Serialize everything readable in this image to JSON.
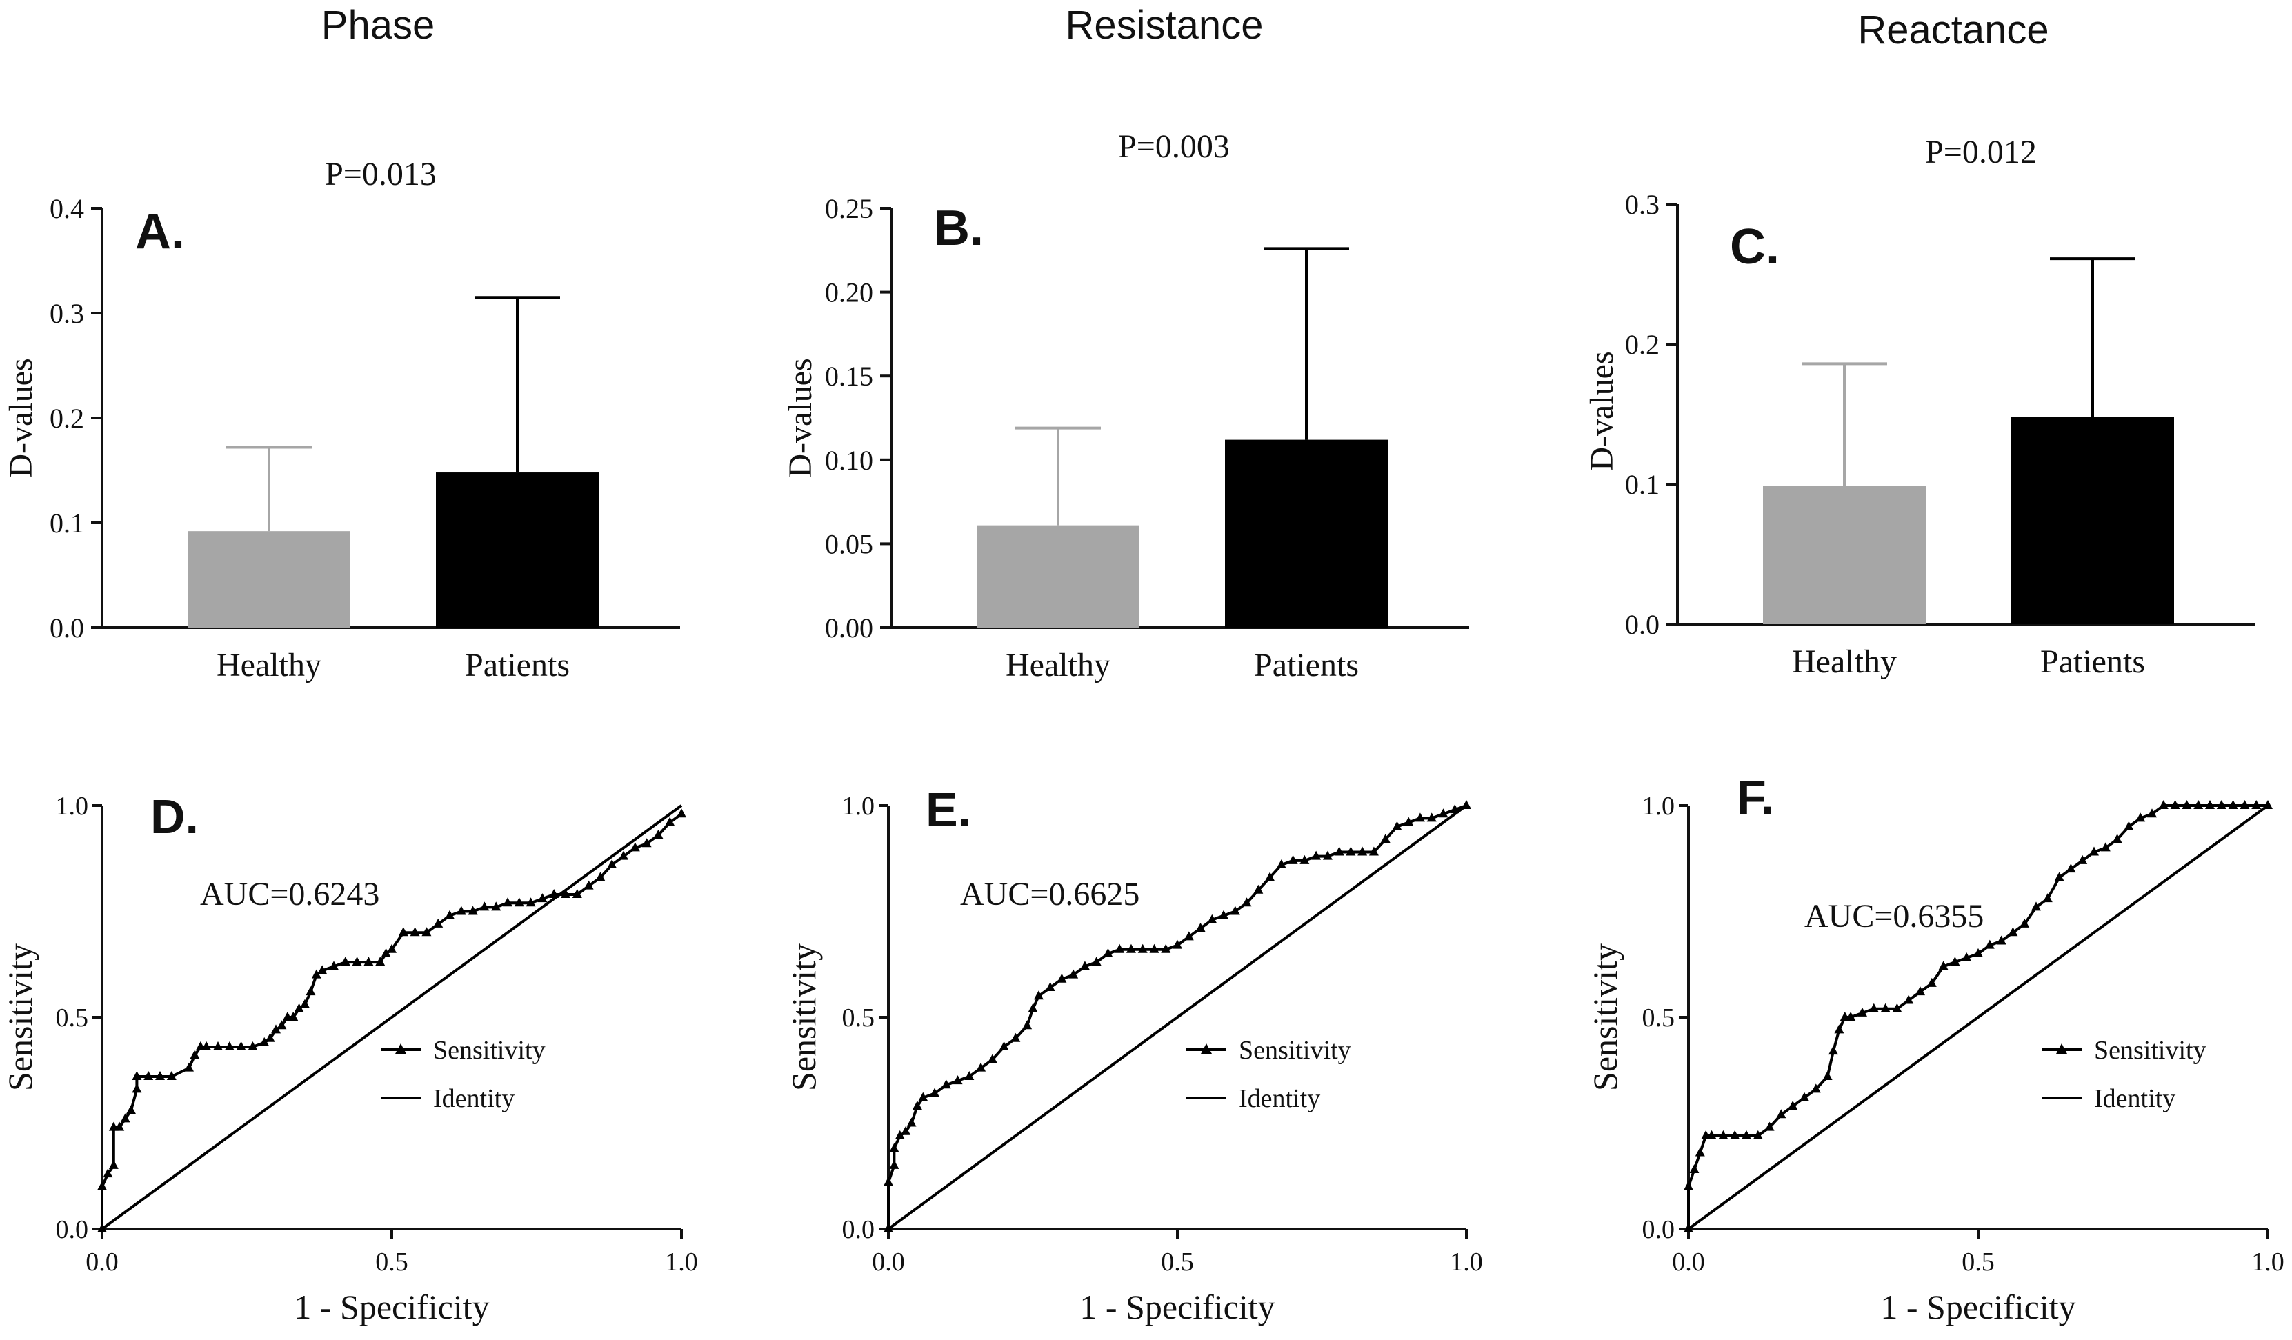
{
  "column_titles": [
    "Phase",
    "Resistance",
    "Reactance"
  ],
  "colors": {
    "healthy": "#a6a6a6",
    "patients": "#000000",
    "axis": "#111111",
    "identity": "#000000"
  },
  "chart_data": [
    {
      "panel": "A.",
      "type": "bar",
      "title": "Phase",
      "annotation": "P=0.013",
      "ylabel": "D-values",
      "categories": [
        "Healthy",
        "Patients"
      ],
      "values": [
        0.092,
        0.148
      ],
      "error_upper": [
        0.172,
        0.315
      ],
      "ylim": [
        0,
        0.4
      ],
      "yticks": [
        0.0,
        0.1,
        0.2,
        0.3,
        0.4
      ],
      "ytick_labels": [
        "0.0",
        "0.1",
        "0.2",
        "0.3",
        "0.4"
      ]
    },
    {
      "panel": "B.",
      "type": "bar",
      "title": "Resistance",
      "annotation": "P=0.003",
      "ylabel": "D-values",
      "categories": [
        "Healthy",
        "Patients"
      ],
      "values": [
        0.061,
        0.112
      ],
      "error_upper": [
        0.119,
        0.226
      ],
      "ylim": [
        0,
        0.25
      ],
      "yticks": [
        0.0,
        0.05,
        0.1,
        0.15,
        0.2,
        0.25
      ],
      "ytick_labels": [
        "0.00",
        "0.05",
        "0.10",
        "0.15",
        "0.20",
        "0.25"
      ]
    },
    {
      "panel": "C.",
      "type": "bar",
      "title": "Reactance",
      "annotation": "P=0.012",
      "ylabel": "D-values",
      "categories": [
        "Healthy",
        "Patients"
      ],
      "values": [
        0.099,
        0.148
      ],
      "error_upper": [
        0.186,
        0.261
      ],
      "ylim": [
        0,
        0.3
      ],
      "yticks": [
        0.0,
        0.1,
        0.2,
        0.3
      ],
      "ytick_labels": [
        "0.0",
        "0.1",
        "0.2",
        "0.3"
      ]
    },
    {
      "panel": "D.",
      "type": "line",
      "annotation": "AUC=0.6243",
      "xlabel": "1 - Specificity",
      "ylabel": "Sensitivity",
      "xlim": [
        0,
        1
      ],
      "ylim": [
        0,
        1
      ],
      "xtick_labels": [
        "0.0",
        "0.5",
        "1.0"
      ],
      "ytick_labels": [
        "0.0",
        "0.5",
        "1.0"
      ],
      "legend": [
        "Sensitivity",
        "Identity"
      ],
      "series": [
        {
          "name": "Sensitivity",
          "x": [
            0,
            0,
            0.01,
            0.02,
            0.02,
            0.03,
            0.04,
            0.05,
            0.06,
            0.06,
            0.08,
            0.1,
            0.12,
            0.15,
            0.16,
            0.17,
            0.18,
            0.2,
            0.22,
            0.24,
            0.26,
            0.28,
            0.29,
            0.3,
            0.31,
            0.32,
            0.33,
            0.34,
            0.35,
            0.36,
            0.37,
            0.38,
            0.4,
            0.42,
            0.44,
            0.46,
            0.48,
            0.49,
            0.5,
            0.52,
            0.54,
            0.56,
            0.58,
            0.6,
            0.62,
            0.64,
            0.66,
            0.68,
            0.7,
            0.72,
            0.74,
            0.76,
            0.78,
            0.8,
            0.82,
            0.84,
            0.86,
            0.88,
            0.9,
            0.92,
            0.94,
            0.96,
            0.98,
            1.0
          ],
          "y": [
            0,
            0.1,
            0.13,
            0.15,
            0.24,
            0.24,
            0.26,
            0.28,
            0.33,
            0.36,
            0.36,
            0.36,
            0.36,
            0.38,
            0.41,
            0.43,
            0.43,
            0.43,
            0.43,
            0.43,
            0.43,
            0.44,
            0.45,
            0.47,
            0.48,
            0.5,
            0.5,
            0.52,
            0.53,
            0.56,
            0.6,
            0.61,
            0.62,
            0.63,
            0.63,
            0.63,
            0.63,
            0.65,
            0.66,
            0.7,
            0.7,
            0.7,
            0.72,
            0.74,
            0.75,
            0.75,
            0.76,
            0.76,
            0.77,
            0.77,
            0.77,
            0.78,
            0.79,
            0.79,
            0.79,
            0.81,
            0.83,
            0.86,
            0.88,
            0.9,
            0.91,
            0.93,
            0.96,
            0.98
          ]
        },
        {
          "name": "Identity",
          "x": [
            0,
            1
          ],
          "y": [
            0,
            1
          ]
        }
      ]
    },
    {
      "panel": "E.",
      "type": "line",
      "annotation": "AUC=0.6625",
      "xlabel": "1 - Specificity",
      "ylabel": "Sensitivity",
      "xlim": [
        0,
        1
      ],
      "ylim": [
        0,
        1
      ],
      "xtick_labels": [
        "0.0",
        "0.5",
        "1.0"
      ],
      "ytick_labels": [
        "0.0",
        "0.5",
        "1.0"
      ],
      "legend": [
        "Sensitivity",
        "Identity"
      ],
      "series": [
        {
          "name": "Sensitivity",
          "x": [
            0,
            0,
            0.01,
            0.01,
            0.02,
            0.03,
            0.04,
            0.05,
            0.06,
            0.08,
            0.1,
            0.12,
            0.14,
            0.16,
            0.18,
            0.2,
            0.22,
            0.24,
            0.25,
            0.26,
            0.28,
            0.3,
            0.32,
            0.34,
            0.36,
            0.38,
            0.4,
            0.42,
            0.44,
            0.46,
            0.48,
            0.5,
            0.52,
            0.54,
            0.56,
            0.58,
            0.6,
            0.62,
            0.64,
            0.66,
            0.68,
            0.7,
            0.72,
            0.74,
            0.76,
            0.78,
            0.8,
            0.82,
            0.84,
            0.86,
            0.88,
            0.9,
            0.92,
            0.94,
            0.96,
            0.98,
            1.0
          ],
          "y": [
            0,
            0.11,
            0.15,
            0.19,
            0.22,
            0.23,
            0.25,
            0.29,
            0.31,
            0.32,
            0.34,
            0.35,
            0.36,
            0.38,
            0.4,
            0.43,
            0.45,
            0.48,
            0.52,
            0.55,
            0.57,
            0.59,
            0.6,
            0.62,
            0.63,
            0.65,
            0.66,
            0.66,
            0.66,
            0.66,
            0.66,
            0.67,
            0.69,
            0.71,
            0.73,
            0.74,
            0.75,
            0.77,
            0.8,
            0.83,
            0.86,
            0.87,
            0.87,
            0.88,
            0.88,
            0.89,
            0.89,
            0.89,
            0.89,
            0.92,
            0.95,
            0.96,
            0.97,
            0.97,
            0.98,
            0.99,
            1.0
          ]
        },
        {
          "name": "Identity",
          "x": [
            0,
            1
          ],
          "y": [
            0,
            1
          ]
        }
      ]
    },
    {
      "panel": "F.",
      "type": "line",
      "annotation": "AUC=0.6355",
      "xlabel": "1 - Specificity",
      "ylabel": "Sensitivity",
      "xlim": [
        0,
        1
      ],
      "ylim": [
        0,
        1
      ],
      "xtick_labels": [
        "0.0",
        "0.5",
        "1.0"
      ],
      "ytick_labels": [
        "0.0",
        "0.5",
        "1.0"
      ],
      "legend": [
        "Sensitivity",
        "Identity"
      ],
      "series": [
        {
          "name": "Sensitivity",
          "x": [
            0,
            0,
            0.01,
            0.02,
            0.03,
            0.04,
            0.06,
            0.08,
            0.1,
            0.12,
            0.14,
            0.16,
            0.18,
            0.2,
            0.22,
            0.24,
            0.25,
            0.26,
            0.27,
            0.28,
            0.3,
            0.32,
            0.34,
            0.36,
            0.38,
            0.4,
            0.42,
            0.44,
            0.46,
            0.48,
            0.5,
            0.52,
            0.54,
            0.56,
            0.58,
            0.6,
            0.62,
            0.64,
            0.66,
            0.68,
            0.7,
            0.72,
            0.74,
            0.76,
            0.78,
            0.8,
            0.82,
            0.84,
            0.86,
            0.88,
            0.9,
            0.92,
            0.94,
            0.96,
            0.98,
            1.0
          ],
          "y": [
            0,
            0.1,
            0.14,
            0.18,
            0.22,
            0.22,
            0.22,
            0.22,
            0.22,
            0.22,
            0.24,
            0.27,
            0.29,
            0.31,
            0.33,
            0.36,
            0.42,
            0.47,
            0.5,
            0.5,
            0.51,
            0.52,
            0.52,
            0.52,
            0.54,
            0.56,
            0.58,
            0.62,
            0.63,
            0.64,
            0.65,
            0.67,
            0.68,
            0.7,
            0.72,
            0.76,
            0.78,
            0.83,
            0.85,
            0.87,
            0.89,
            0.9,
            0.92,
            0.95,
            0.97,
            0.98,
            1.0,
            1.0,
            1.0,
            1.0,
            1.0,
            1.0,
            1.0,
            1.0,
            1.0,
            1.0
          ]
        },
        {
          "name": "Identity",
          "x": [
            0,
            1
          ],
          "y": [
            0,
            1
          ]
        }
      ]
    }
  ]
}
